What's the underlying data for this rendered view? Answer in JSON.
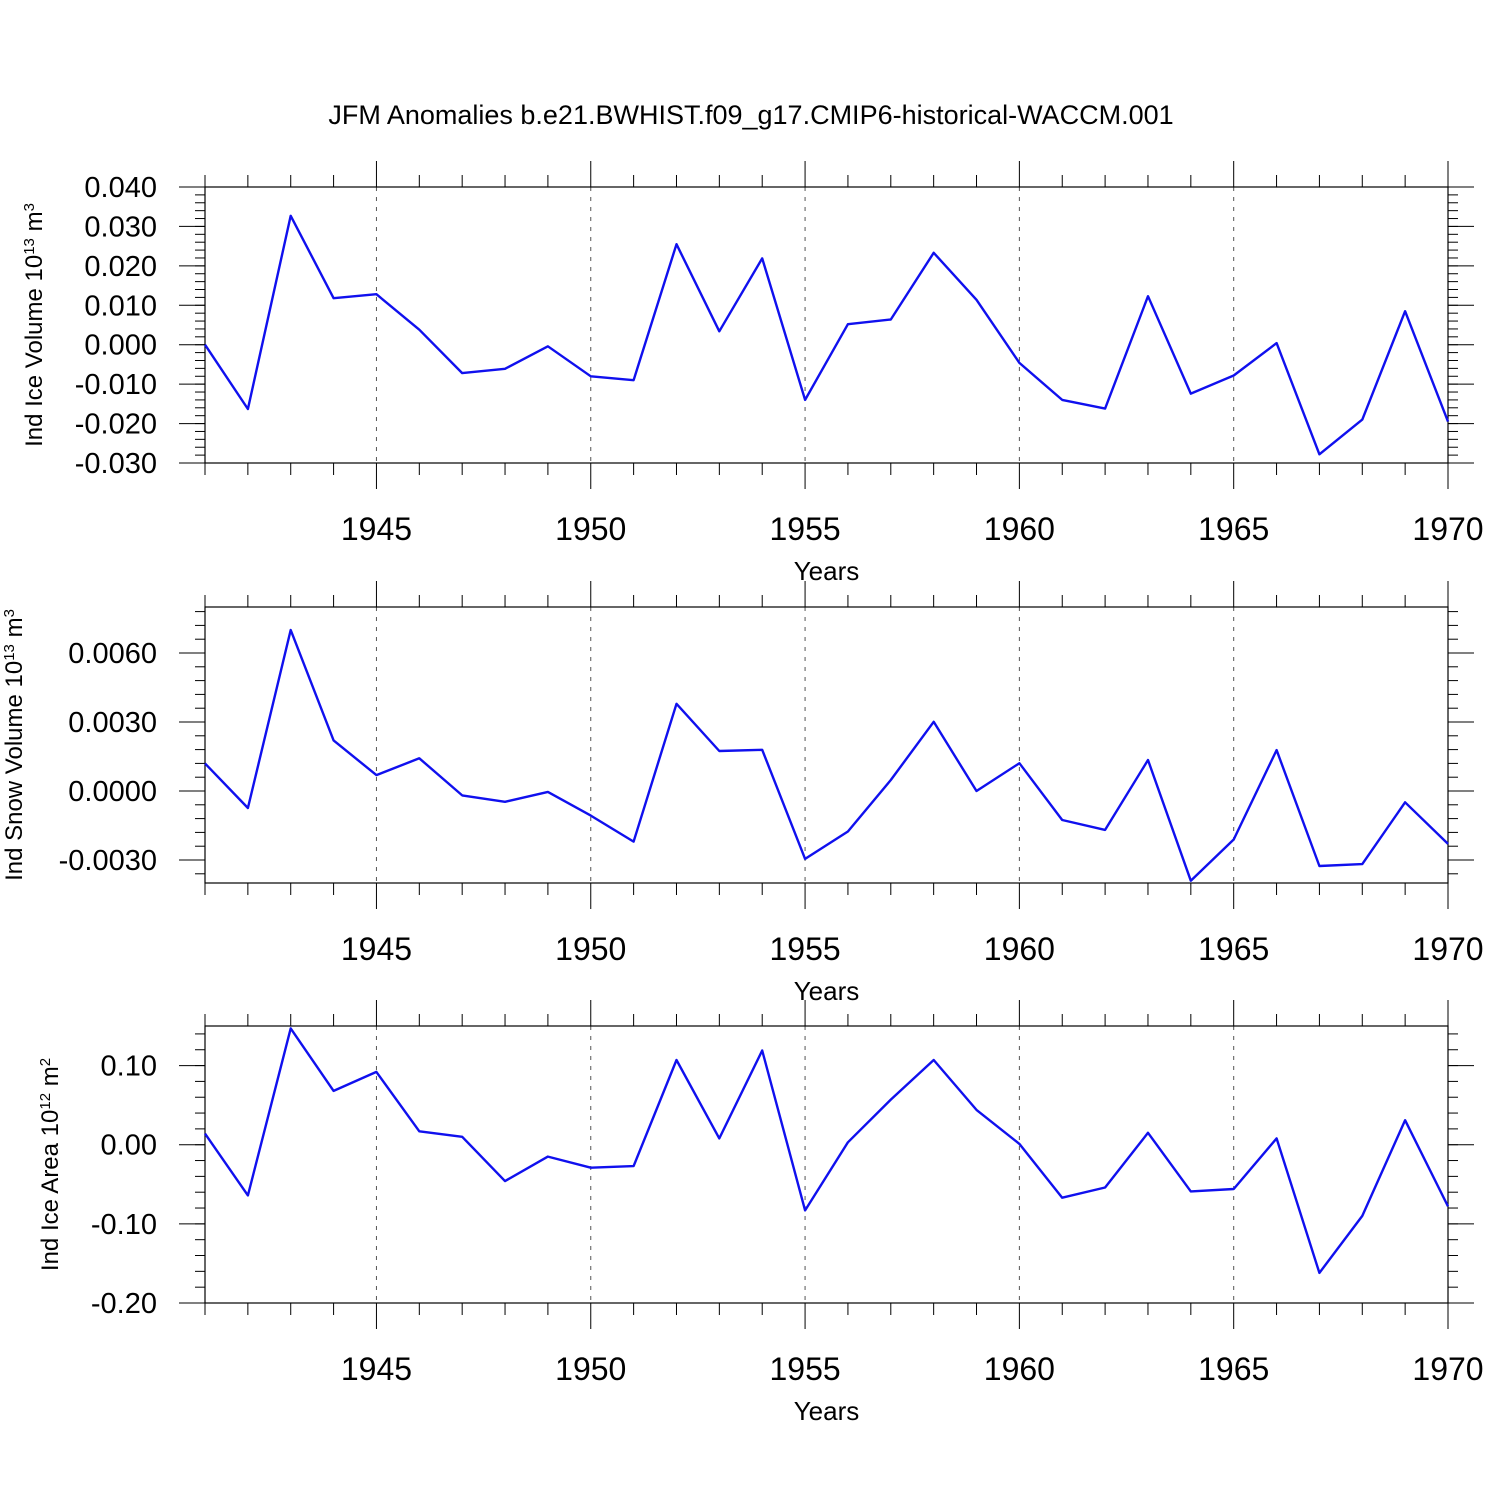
{
  "title": "JFM Anomalies b.e21.BWHIST.f09_g17.CMIP6-historical-WACCM.001",
  "chart_data": [
    {
      "type": "line",
      "xlabel": "Years",
      "ylabel": {
        "text": "Ind Ice Volume 10",
        "sup1": "13",
        "mid": " m",
        "sup2": "3"
      },
      "xlim": [
        1941,
        1970
      ],
      "ylim": [
        -0.03,
        0.04
      ],
      "xticks": [
        1945,
        1950,
        1955,
        1960,
        1965,
        1970
      ],
      "xtick_labels": [
        "1945",
        "1950",
        "1955",
        "1960",
        "1965",
        "1970"
      ],
      "yticks": [
        -0.03,
        -0.02,
        -0.01,
        0.0,
        0.01,
        0.02,
        0.03,
        0.04
      ],
      "ytick_labels": [
        "-0.030",
        "-0.020",
        "-0.010",
        "0.000",
        "0.010",
        "0.020",
        "0.030",
        "0.040"
      ],
      "grid": "vertical dashed at major x ticks",
      "color": "#1010ee",
      "x": [
        1941,
        1942,
        1943,
        1944,
        1945,
        1946,
        1947,
        1948,
        1949,
        1950,
        1951,
        1952,
        1953,
        1954,
        1955,
        1956,
        1957,
        1958,
        1959,
        1960,
        1961,
        1962,
        1963,
        1964,
        1965,
        1966,
        1967,
        1968,
        1969,
        1970
      ],
      "values": [
        0.0,
        -0.0163,
        0.0327,
        0.0118,
        0.0128,
        0.0038,
        -0.0072,
        -0.0061,
        -0.0004,
        -0.008,
        -0.009,
        0.0255,
        0.0034,
        0.0219,
        -0.014,
        0.0052,
        0.0064,
        0.0233,
        0.0114,
        -0.0046,
        -0.014,
        -0.0162,
        0.0123,
        -0.0124,
        -0.0078,
        0.0004,
        -0.0278,
        -0.019,
        0.0085,
        -0.0195
      ]
    },
    {
      "type": "line",
      "xlabel": "Years",
      "ylabel": {
        "text": "Ind Snow Volume 10",
        "sup1": "13",
        "mid": " m",
        "sup2": "3"
      },
      "xlim": [
        1941,
        1970
      ],
      "ylim": [
        -0.004,
        0.008
      ],
      "xticks": [
        1945,
        1950,
        1955,
        1960,
        1965,
        1970
      ],
      "xtick_labels": [
        "1945",
        "1950",
        "1955",
        "1960",
        "1965",
        "1970"
      ],
      "yticks": [
        -0.003,
        0.0,
        0.003,
        0.006
      ],
      "ytick_labels": [
        "-0.0030",
        "0.0000",
        "0.0030",
        "0.0060"
      ],
      "grid": "vertical dashed at major x ticks",
      "color": "#1010ee",
      "x": [
        1941,
        1942,
        1943,
        1944,
        1945,
        1946,
        1947,
        1948,
        1949,
        1950,
        1951,
        1952,
        1953,
        1954,
        1955,
        1956,
        1957,
        1958,
        1959,
        1960,
        1961,
        1962,
        1963,
        1964,
        1965,
        1966,
        1967,
        1968,
        1969,
        1970
      ],
      "values": [
        0.0012,
        -0.00074,
        0.007,
        0.0022,
        0.00069,
        0.00142,
        -0.00019,
        -0.00047,
        -4e-05,
        -0.00107,
        -0.0022,
        0.00379,
        0.00174,
        0.00179,
        -0.00295,
        -0.00176,
        0.00048,
        0.00301,
        0.0,
        0.00121,
        -0.00126,
        -0.00169,
        0.00135,
        -0.0039,
        -0.00211,
        0.00178,
        -0.00326,
        -0.00318,
        -0.00049,
        -0.0023
      ]
    },
    {
      "type": "line",
      "xlabel": "Years",
      "ylabel": {
        "text": "Ind Ice Area 10",
        "sup1": "12",
        "mid": " m",
        "sup2": "2"
      },
      "xlim": [
        1941,
        1970
      ],
      "ylim": [
        -0.2,
        0.15
      ],
      "xticks": [
        1945,
        1950,
        1955,
        1960,
        1965,
        1970
      ],
      "xtick_labels": [
        "1945",
        "1950",
        "1955",
        "1960",
        "1965",
        "1970"
      ],
      "yticks": [
        -0.2,
        -0.1,
        0.0,
        0.1
      ],
      "ytick_labels": [
        "-0.20",
        "-0.10",
        "0.00",
        "0.10"
      ],
      "grid": "vertical dashed at major x ticks",
      "color": "#1010ee",
      "x": [
        1941,
        1942,
        1943,
        1944,
        1945,
        1946,
        1947,
        1948,
        1949,
        1950,
        1951,
        1952,
        1953,
        1954,
        1955,
        1956,
        1957,
        1958,
        1959,
        1960,
        1961,
        1962,
        1963,
        1964,
        1965,
        1966,
        1967,
        1968,
        1969,
        1970
      ],
      "values": [
        0.014,
        -0.064,
        0.147,
        0.068,
        0.092,
        0.017,
        0.01,
        -0.046,
        -0.015,
        -0.029,
        -0.027,
        0.107,
        0.008,
        0.119,
        -0.083,
        0.003,
        0.057,
        0.107,
        0.044,
        0.001,
        -0.067,
        -0.054,
        0.015,
        -0.059,
        -0.056,
        0.008,
        -0.162,
        -0.09,
        0.031,
        -0.078
      ]
    }
  ]
}
